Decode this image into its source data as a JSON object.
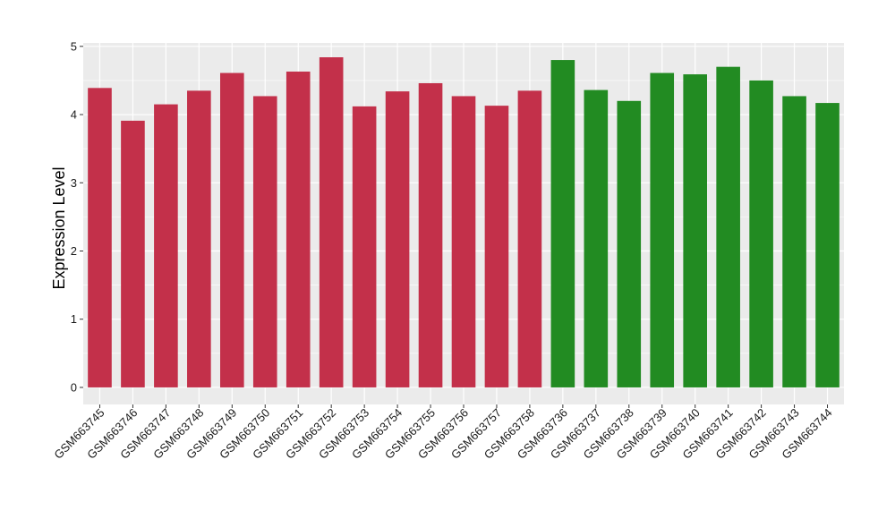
{
  "chart_data": {
    "type": "bar",
    "title": "",
    "xlabel": "",
    "ylabel": "Expression Level",
    "ylim": [
      -0.25,
      5.05
    ],
    "yticks": [
      0,
      1,
      2,
      3,
      4,
      5
    ],
    "grid": true,
    "legend": "none",
    "categories": [
      "GSM663745",
      "GSM663746",
      "GSM663747",
      "GSM663748",
      "GSM663749",
      "GSM663750",
      "GSM663751",
      "GSM663752",
      "GSM663753",
      "GSM663754",
      "GSM663755",
      "GSM663756",
      "GSM663757",
      "GSM663758",
      "GSM663736",
      "GSM663737",
      "GSM663738",
      "GSM663739",
      "GSM663740",
      "GSM663741",
      "GSM663742",
      "GSM663743",
      "GSM663744"
    ],
    "values": [
      4.39,
      3.91,
      4.15,
      4.35,
      4.61,
      4.27,
      4.63,
      4.84,
      4.12,
      4.34,
      4.46,
      4.27,
      4.13,
      4.35,
      4.8,
      4.36,
      4.2,
      4.61,
      4.59,
      4.7,
      4.5,
      4.27,
      4.17
    ],
    "bar_colors": [
      "#c3304a",
      "#c3304a",
      "#c3304a",
      "#c3304a",
      "#c3304a",
      "#c3304a",
      "#c3304a",
      "#c3304a",
      "#c3304a",
      "#c3304a",
      "#c3304a",
      "#c3304a",
      "#c3304a",
      "#c3304a",
      "#228b22",
      "#228b22",
      "#228b22",
      "#228b22",
      "#228b22",
      "#228b22",
      "#228b22",
      "#228b22",
      "#228b22"
    ],
    "panel_color": "#ebebeb",
    "grid_color": "#ffffff"
  }
}
